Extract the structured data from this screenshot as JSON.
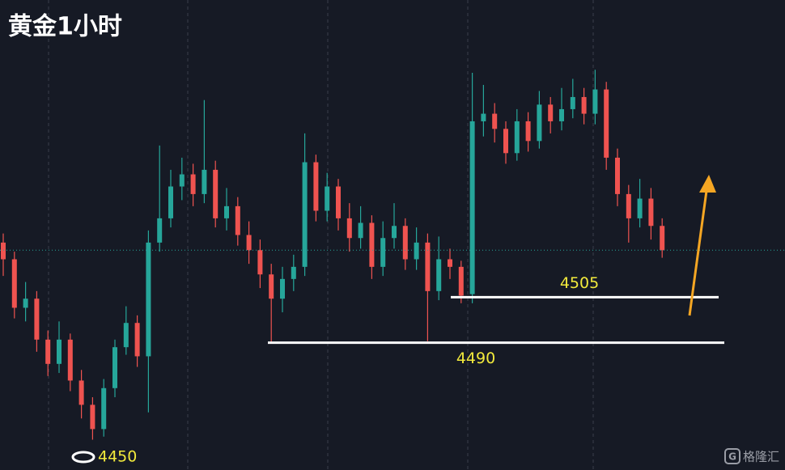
{
  "chart_data": {
    "type": "candlestick",
    "title": "黄金1小时",
    "open": [
      4523,
      4517.5,
      4501.5,
      4504.5,
      4491,
      4483,
      4491,
      4477.5,
      4469.5,
      4461.5,
      4475,
      4488.5,
      4496.5,
      4485.5,
      4523,
      4531,
      4541.5,
      4545.5,
      4539,
      4547,
      4531,
      4535,
      4525.5,
      4520.5,
      4512.5,
      4504.5,
      4511,
      4515,
      4549.5,
      4533.5,
      4541.5,
      4531,
      4524.5,
      4529.5,
      4515,
      4524.5,
      4528.5,
      4517.5,
      4523,
      4507,
      4517.5,
      4515,
      4506,
      4563,
      4565.5,
      4560.5,
      4552.5,
      4563,
      4556.5,
      4568.5,
      4563,
      4567,
      4571,
      4565.5,
      4573.5,
      4551,
      4539,
      4531,
      4537.5,
      4528.5
    ],
    "high": [
      4526,
      4520,
      4510,
      4507,
      4494,
      4497,
      4493,
      4481,
      4472,
      4478,
      4491,
      4502,
      4499,
      4527,
      4555,
      4547,
      4551,
      4549,
      4570,
      4550,
      4541,
      4538,
      4530,
      4524,
      4516,
      4515,
      4519,
      4559,
      4552,
      4546,
      4544,
      4536,
      4535,
      4532,
      4530,
      4536,
      4531,
      4528,
      4526,
      4525,
      4521,
      4517,
      4579,
      4575,
      4569,
      4563,
      4567,
      4566,
      4573,
      4571,
      4574,
      4577,
      4574,
      4580,
      4576,
      4554,
      4542,
      4544,
      4541,
      4531
    ],
    "low": [
      4512,
      4498,
      4497,
      4487,
      4479,
      4480,
      4474,
      4465,
      4458,
      4459,
      4472,
      4486,
      4482,
      4467,
      4520,
      4528,
      4537,
      4535,
      4536,
      4528,
      4527,
      4522,
      4516,
      4508,
      4490,
      4500,
      4507,
      4512,
      4530,
      4530,
      4527,
      4520,
      4521,
      4511,
      4512,
      4521,
      4514,
      4514,
      4490.5,
      4504,
      4511,
      4503,
      4503,
      4558,
      4556,
      4549,
      4550,
      4553,
      4554,
      4559,
      4560,
      4564,
      4562,
      4562,
      4547,
      4535,
      4523,
      4528,
      4524,
      4518
    ],
    "close": [
      4517.5,
      4501.5,
      4504.5,
      4491,
      4483,
      4491,
      4477.5,
      4469.5,
      4461.5,
      4475,
      4488.5,
      4496.5,
      4485.5,
      4523,
      4531,
      4541.5,
      4545.5,
      4539,
      4547,
      4531,
      4535,
      4525.5,
      4520.5,
      4512.5,
      4504.5,
      4511,
      4515,
      4549.5,
      4533.5,
      4541.5,
      4531,
      4524.5,
      4529.5,
      4515,
      4524.5,
      4528.5,
      4517.5,
      4523,
      4507,
      4517.5,
      4515,
      4505.5,
      4563,
      4565.5,
      4560.5,
      4552.5,
      4563,
      4556.5,
      4568.5,
      4563,
      4567,
      4571,
      4565.5,
      4573.5,
      4551,
      4539,
      4531,
      4537.5,
      4528.5,
      4520.5
    ],
    "up_color": "#26a69a",
    "down_color": "#ef5350",
    "ylim": [
      4448,
      4603
    ],
    "levels": [
      4505,
      4490
    ],
    "level_color": "#ffffff",
    "low_marker": 4450,
    "annotation_color": "#f2ea3c",
    "grid": true
  },
  "watermark": "格隆汇"
}
